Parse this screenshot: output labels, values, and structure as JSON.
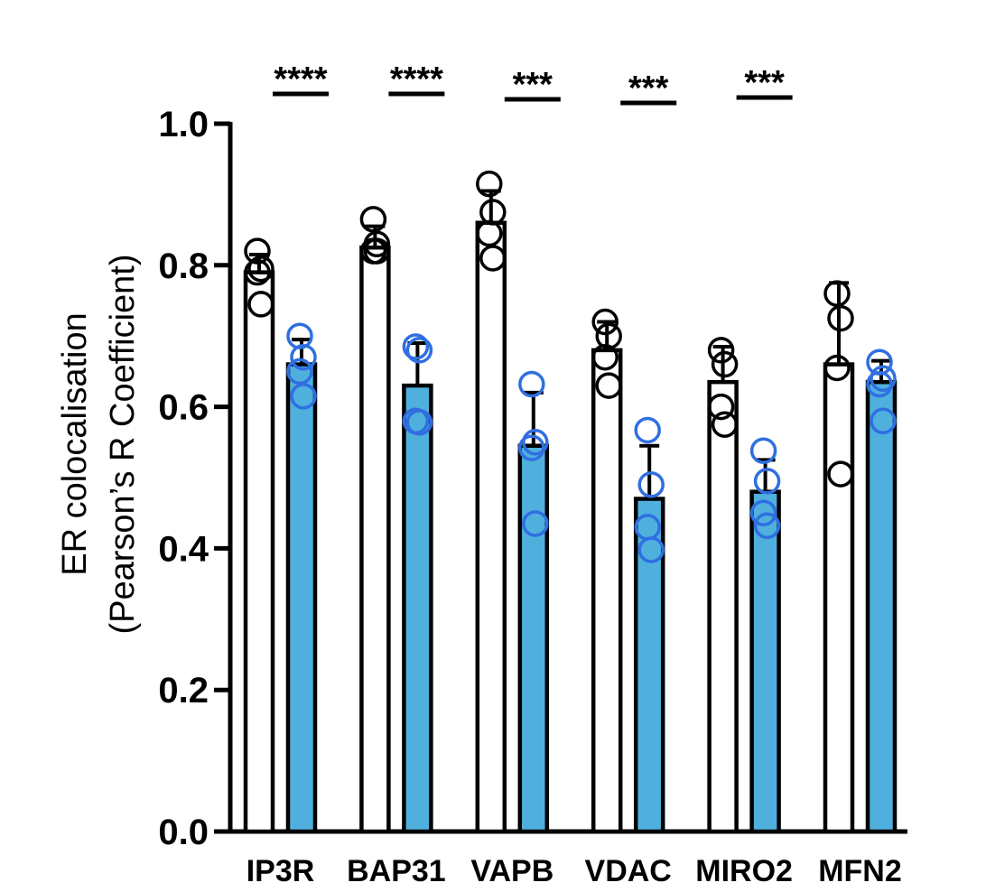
{
  "chart_data": {
    "type": "bar",
    "title": "",
    "xlabel": "",
    "ylabel": "ER colocalisation",
    "ylabel_line2": "(Pearson’s R Coefficient)",
    "ylim": [
      0,
      1.0
    ],
    "yticks": [
      0.0,
      0.2,
      0.4,
      0.6,
      0.8,
      1.0
    ],
    "ytick_labels": [
      "0.0",
      "0.2",
      "0.4",
      "0.6",
      "0.8",
      "1.0"
    ],
    "categories": [
      "IP3R",
      "BAP31",
      "VAPB",
      "VDAC",
      "MIRO2",
      "MFN2"
    ],
    "grid": false,
    "legend": "none",
    "series": [
      {
        "fill": "#ffffff",
        "point_color": "#000000",
        "values": [
          0.79,
          0.825,
          0.86,
          0.68,
          0.635,
          0.66
        ],
        "errors": [
          0.025,
          0.03,
          0.045,
          0.04,
          0.05,
          0.115
        ],
        "points": [
          [
            0.82,
            0.795,
            0.79,
            0.745
          ],
          [
            0.865,
            0.83,
            0.82,
            0.82
          ],
          [
            0.915,
            0.875,
            0.845,
            0.81
          ],
          [
            0.72,
            0.7,
            0.67,
            0.63
          ],
          [
            0.68,
            0.66,
            0.6,
            0.575
          ],
          [
            0.76,
            0.725,
            0.655,
            0.505
          ]
        ]
      },
      {
        "fill": "#4fb0de",
        "point_color": "#2f6fe0",
        "values": [
          0.66,
          0.63,
          0.545,
          0.47,
          0.48,
          0.635
        ],
        "errors": [
          0.035,
          0.06,
          0.075,
          0.075,
          0.045,
          0.03
        ],
        "points": [
          [
            0.7,
            0.67,
            0.65,
            0.615
          ],
          [
            0.685,
            0.68,
            0.58,
            0.578
          ],
          [
            0.632,
            0.55,
            0.542,
            0.435
          ],
          [
            0.567,
            0.49,
            0.43,
            0.398
          ],
          [
            0.538,
            0.495,
            0.45,
            0.432
          ],
          [
            0.663,
            0.64,
            0.632,
            0.58
          ]
        ]
      }
    ],
    "significance": [
      "****",
      "****",
      "***",
      "***",
      "***"
    ]
  }
}
